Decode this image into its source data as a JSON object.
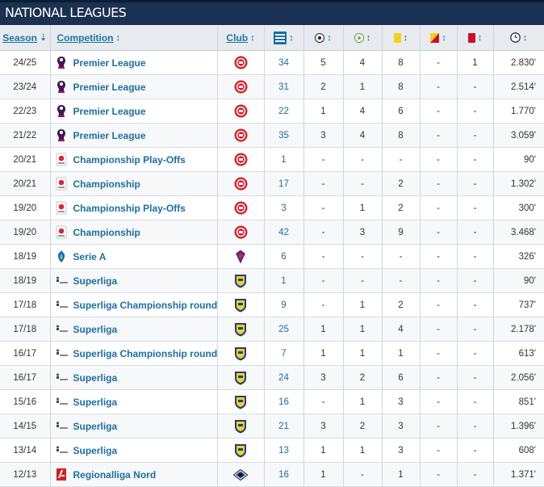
{
  "section": {
    "title": "NATIONAL LEAGUES"
  },
  "headers": {
    "season": "Season",
    "competition": "Competition",
    "club": "Club",
    "sort_up_down": "↕",
    "sort_down": "⇣",
    "icons": {
      "appearances": "appearances-icon",
      "goals": "football-icon",
      "assists": "assist-ball-icon",
      "yellow": "yellow-card-icon",
      "second_yellow": "yellow-red-card-icon",
      "red": "red-card-icon",
      "minutes": "clock-icon"
    }
  },
  "colors": {
    "header_bg": "#1a3151",
    "link": "#1d6f9c",
    "brentford_red": "#d0202a",
    "brondby_blue": "#1f3d8f",
    "brondby_yellow": "#f3d21b",
    "fiorentina_purple": "#5b2a86",
    "hamburg_blue": "#1a4b9c"
  },
  "rows": [
    {
      "season": "24/25",
      "competition": "Premier League",
      "league_logo": "premier-league-logo",
      "club_logo": "brentford",
      "apps": "34",
      "goals": "5",
      "assists": "4",
      "yellow": "8",
      "second_yellow": "-",
      "red": "1",
      "minutes": "2.830'"
    },
    {
      "season": "23/24",
      "competition": "Premier League",
      "league_logo": "premier-league-logo",
      "club_logo": "brentford",
      "apps": "31",
      "goals": "2",
      "assists": "1",
      "yellow": "8",
      "second_yellow": "-",
      "red": "-",
      "minutes": "2.514'"
    },
    {
      "season": "22/23",
      "competition": "Premier League",
      "league_logo": "premier-league-logo",
      "club_logo": "brentford",
      "apps": "22",
      "goals": "1",
      "assists": "4",
      "yellow": "6",
      "second_yellow": "-",
      "red": "-",
      "minutes": "1.770'"
    },
    {
      "season": "21/22",
      "competition": "Premier League",
      "league_logo": "premier-league-logo",
      "club_logo": "brentford",
      "apps": "35",
      "goals": "3",
      "assists": "4",
      "yellow": "8",
      "second_yellow": "-",
      "red": "-",
      "minutes": "3.059'"
    },
    {
      "season": "20/21",
      "competition": "Championship Play-Offs",
      "league_logo": "championship-logo",
      "club_logo": "brentford",
      "apps": "1",
      "goals": "-",
      "assists": "-",
      "yellow": "-",
      "second_yellow": "-",
      "red": "-",
      "minutes": "90'"
    },
    {
      "season": "20/21",
      "competition": "Championship",
      "league_logo": "championship-logo",
      "club_logo": "brentford",
      "apps": "17",
      "goals": "-",
      "assists": "-",
      "yellow": "2",
      "second_yellow": "-",
      "red": "-",
      "minutes": "1.302'"
    },
    {
      "season": "19/20",
      "competition": "Championship Play-Offs",
      "league_logo": "championship-logo",
      "club_logo": "brentford",
      "apps": "3",
      "goals": "-",
      "assists": "1",
      "yellow": "2",
      "second_yellow": "-",
      "red": "-",
      "minutes": "300'"
    },
    {
      "season": "19/20",
      "competition": "Championship",
      "league_logo": "championship-logo",
      "club_logo": "brentford",
      "apps": "42",
      "goals": "-",
      "assists": "3",
      "yellow": "9",
      "second_yellow": "-",
      "red": "-",
      "minutes": "3.468'"
    },
    {
      "season": "18/19",
      "competition": "Serie A",
      "league_logo": "serie-a-logo",
      "club_logo": "fiorentina",
      "apps": "6",
      "goals": "-",
      "assists": "-",
      "yellow": "-",
      "second_yellow": "-",
      "red": "-",
      "minutes": "326'"
    },
    {
      "season": "18/19",
      "competition": "Superliga",
      "league_logo": "superliga-logo",
      "club_logo": "brondby",
      "apps": "1",
      "goals": "-",
      "assists": "-",
      "yellow": "-",
      "second_yellow": "-",
      "red": "-",
      "minutes": "90'"
    },
    {
      "season": "17/18",
      "competition": "Superliga Championship round",
      "league_logo": "superliga-logo",
      "club_logo": "brondby",
      "apps": "9",
      "goals": "-",
      "assists": "1",
      "yellow": "2",
      "second_yellow": "-",
      "red": "-",
      "minutes": "737'"
    },
    {
      "season": "17/18",
      "competition": "Superliga",
      "league_logo": "superliga-logo",
      "club_logo": "brondby",
      "apps": "25",
      "goals": "1",
      "assists": "1",
      "yellow": "4",
      "second_yellow": "-",
      "red": "-",
      "minutes": "2.178'"
    },
    {
      "season": "16/17",
      "competition": "Superliga Championship round",
      "league_logo": "superliga-logo",
      "club_logo": "brondby",
      "apps": "7",
      "goals": "1",
      "assists": "1",
      "yellow": "1",
      "second_yellow": "-",
      "red": "-",
      "minutes": "613'"
    },
    {
      "season": "16/17",
      "competition": "Superliga",
      "league_logo": "superliga-logo",
      "club_logo": "brondby",
      "apps": "24",
      "goals": "3",
      "assists": "2",
      "yellow": "6",
      "second_yellow": "-",
      "red": "-",
      "minutes": "2.056'"
    },
    {
      "season": "15/16",
      "competition": "Superliga",
      "league_logo": "superliga-logo",
      "club_logo": "brondby",
      "apps": "16",
      "goals": "-",
      "assists": "1",
      "yellow": "3",
      "second_yellow": "-",
      "red": "-",
      "minutes": "851'"
    },
    {
      "season": "14/15",
      "competition": "Superliga",
      "league_logo": "superliga-logo",
      "club_logo": "brondby",
      "apps": "21",
      "goals": "3",
      "assists": "2",
      "yellow": "3",
      "second_yellow": "-",
      "red": "-",
      "minutes": "1.396'"
    },
    {
      "season": "13/14",
      "competition": "Superliga",
      "league_logo": "superliga-logo",
      "club_logo": "brondby",
      "apps": "13",
      "goals": "1",
      "assists": "1",
      "yellow": "3",
      "second_yellow": "-",
      "red": "-",
      "minutes": "608'"
    },
    {
      "season": "12/13",
      "competition": "Regionalliga Nord",
      "league_logo": "regionalliga-logo",
      "club_logo": "hamburg",
      "apps": "16",
      "goals": "1",
      "assists": "-",
      "yellow": "1",
      "second_yellow": "-",
      "red": "-",
      "minutes": "1.371'"
    }
  ]
}
